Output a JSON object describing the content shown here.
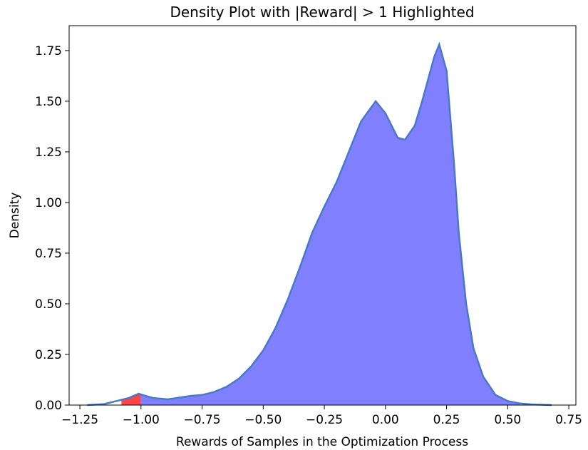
{
  "chart_data": {
    "type": "density",
    "title": "Density Plot with |Reward| > 1 Highlighted",
    "xlabel": "Rewards of Samples in the Optimization Process",
    "ylabel": "Density",
    "x": [
      -1.22,
      -1.15,
      -1.1,
      -1.05,
      -1.01,
      -0.98,
      -0.95,
      -0.89,
      -0.8,
      -0.75,
      -0.7,
      -0.65,
      -0.6,
      -0.55,
      -0.5,
      -0.45,
      -0.4,
      -0.35,
      -0.3,
      -0.25,
      -0.2,
      -0.15,
      -0.1,
      -0.04,
      0.0,
      0.05,
      0.08,
      0.12,
      0.15,
      0.2,
      0.22,
      0.25,
      0.28,
      0.3,
      0.33,
      0.36,
      0.4,
      0.45,
      0.5,
      0.55,
      0.6,
      0.68
    ],
    "values": [
      0,
      0.005,
      0.02,
      0.035,
      0.056,
      0.045,
      0.035,
      0.028,
      0.045,
      0.05,
      0.065,
      0.09,
      0.13,
      0.19,
      0.27,
      0.38,
      0.52,
      0.68,
      0.85,
      0.98,
      1.1,
      1.25,
      1.4,
      1.5,
      1.44,
      1.32,
      1.31,
      1.38,
      1.5,
      1.72,
      1.78,
      1.65,
      1.2,
      0.85,
      0.5,
      0.28,
      0.14,
      0.05,
      0.02,
      0.008,
      0.003,
      0
    ],
    "line_color": "#4a78c8",
    "fill_color": "#8080ff",
    "fill_range": [
      -1.0,
      0.55
    ],
    "highlight_color": "#ff4444",
    "highlight_range": [
      -1.08,
      -1.0
    ],
    "xlim": [
      -1.294,
      0.779
    ],
    "ylim": [
      0,
      1.873
    ],
    "xticks": [
      {
        "value": -1.25,
        "label": "−1.25"
      },
      {
        "value": -1.0,
        "label": "−1.00"
      },
      {
        "value": -0.75,
        "label": "−0.75"
      },
      {
        "value": -0.5,
        "label": "−0.50"
      },
      {
        "value": -0.25,
        "label": "−0.25"
      },
      {
        "value": 0,
        "label": "0.00"
      },
      {
        "value": 0.25,
        "label": "0.25"
      },
      {
        "value": 0.5,
        "label": "0.50"
      },
      {
        "value": 0.75,
        "label": "0.75"
      }
    ],
    "yticks": [
      {
        "value": 0,
        "label": "0.00"
      },
      {
        "value": 0.25,
        "label": "0.25"
      },
      {
        "value": 0.5,
        "label": "0.50"
      },
      {
        "value": 0.75,
        "label": "0.75"
      },
      {
        "value": 1.0,
        "label": "1.00"
      },
      {
        "value": 1.25,
        "label": "1.25"
      },
      {
        "value": 1.5,
        "label": "1.50"
      },
      {
        "value": 1.75,
        "label": "1.75"
      }
    ]
  }
}
